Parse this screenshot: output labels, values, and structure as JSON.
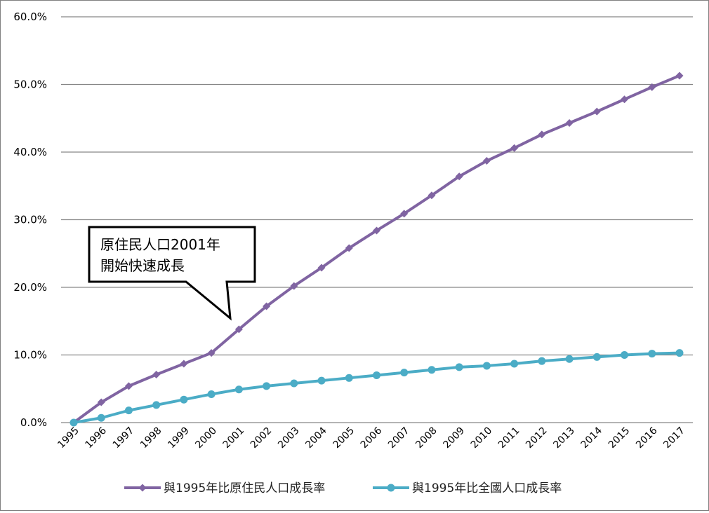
{
  "chart_data": {
    "type": "line",
    "title": "",
    "xlabel": "",
    "ylabel": "",
    "ylim": [
      0,
      60
    ],
    "y_ticks": [
      "0.0%",
      "10.0%",
      "20.0%",
      "30.0%",
      "40.0%",
      "50.0%",
      "60.0%"
    ],
    "y_tick_values": [
      0,
      10,
      20,
      30,
      40,
      50,
      60
    ],
    "grid": "horizontal",
    "legend_position": "bottom",
    "categories": [
      "1995",
      "1996",
      "1997",
      "1998",
      "1999",
      "2000",
      "2001",
      "2002",
      "2003",
      "2004",
      "2005",
      "2006",
      "2007",
      "2008",
      "2009",
      "2010",
      "2011",
      "2012",
      "2013",
      "2014",
      "2015",
      "2016",
      "2017"
    ],
    "series": [
      {
        "name": "與1995年比原住民人口成長率",
        "color": "#8064A2",
        "marker": "diamond",
        "values": [
          0,
          3.0,
          5.4,
          7.1,
          8.7,
          10.3,
          13.8,
          17.2,
          20.2,
          22.9,
          25.8,
          28.4,
          30.9,
          33.6,
          36.4,
          38.7,
          40.6,
          42.6,
          44.3,
          46.0,
          47.8,
          49.6,
          51.3
        ]
      },
      {
        "name": "與1995年比全國人口成長率",
        "color": "#4BACC6",
        "marker": "circle",
        "values": [
          0,
          0.7,
          1.8,
          2.6,
          3.4,
          4.2,
          4.9,
          5.4,
          5.8,
          6.2,
          6.6,
          7.0,
          7.4,
          7.8,
          8.2,
          8.4,
          8.7,
          9.1,
          9.4,
          9.7,
          10.0,
          10.2,
          10.3
        ]
      }
    ],
    "annotations": [
      {
        "lines": [
          "原住民人口2001年",
          "開始快速成長"
        ],
        "points_to": "2001"
      }
    ]
  }
}
